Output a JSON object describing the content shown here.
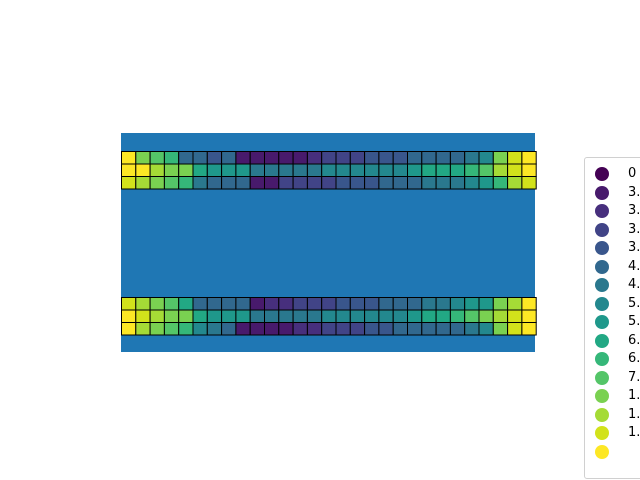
{
  "chart_data": {
    "type": "heatmap",
    "background_color": "#1f77b4",
    "cell_edge_color": "#000000",
    "grid_columns": 29,
    "rows": [
      [
        15,
        12,
        11,
        10,
        5,
        5,
        4,
        5,
        1,
        1,
        1,
        1,
        1,
        2,
        3,
        3,
        3,
        4,
        4,
        4,
        5,
        5,
        5,
        5,
        6,
        7,
        12,
        14,
        15
      ],
      [
        15,
        15,
        13,
        12,
        12,
        9,
        8,
        8,
        8,
        6,
        6,
        6,
        6,
        6,
        7,
        7,
        7,
        7,
        7,
        7,
        8,
        9,
        9,
        9,
        10,
        11,
        13,
        14,
        15
      ],
      [
        14,
        13,
        12,
        11,
        10,
        6,
        5,
        5,
        5,
        1,
        1,
        3,
        3,
        3,
        3,
        4,
        4,
        4,
        5,
        5,
        5,
        6,
        6,
        6,
        7,
        8,
        10,
        13,
        14
      ],
      [
        14,
        13,
        12,
        11,
        9,
        5,
        5,
        5,
        5,
        1,
        2,
        2,
        3,
        3,
        3,
        4,
        4,
        4,
        5,
        5,
        5,
        6,
        6,
        7,
        8,
        8,
        12,
        13,
        15
      ],
      [
        15,
        14,
        13,
        12,
        12,
        9,
        8,
        8,
        8,
        6,
        6,
        6,
        6,
        6,
        7,
        7,
        7,
        7,
        7,
        7,
        8,
        9,
        9,
        10,
        11,
        12,
        13,
        14,
        15
      ],
      [
        15,
        13,
        12,
        11,
        10,
        7,
        6,
        5,
        1,
        1,
        1,
        1,
        2,
        2,
        3,
        3,
        3,
        4,
        4,
        5,
        5,
        5,
        5,
        5,
        6,
        7,
        12,
        14,
        15
      ]
    ],
    "legend": {
      "placement": "right",
      "entries": [
        {
          "label": "0",
          "color": "#440154"
        },
        {
          "label": "3.",
          "color": "#481a6c"
        },
        {
          "label": "3.",
          "color": "#472f7d"
        },
        {
          "label": "3.",
          "color": "#414487"
        },
        {
          "label": "3.",
          "color": "#39568c"
        },
        {
          "label": "4.",
          "color": "#31688e"
        },
        {
          "label": "4.",
          "color": "#2a788e"
        },
        {
          "label": "5.",
          "color": "#23888e"
        },
        {
          "label": "5.",
          "color": "#1f988b"
        },
        {
          "label": "6.",
          "color": "#22a884"
        },
        {
          "label": "6.",
          "color": "#35b779"
        },
        {
          "label": "7.",
          "color": "#54c568"
        },
        {
          "label": "1.",
          "color": "#7ad151"
        },
        {
          "label": "1.",
          "color": "#a5db36"
        },
        {
          "label": "1.",
          "color": "#d2e21b"
        },
        {
          "label": "",
          "color": "#fde725"
        }
      ]
    }
  }
}
